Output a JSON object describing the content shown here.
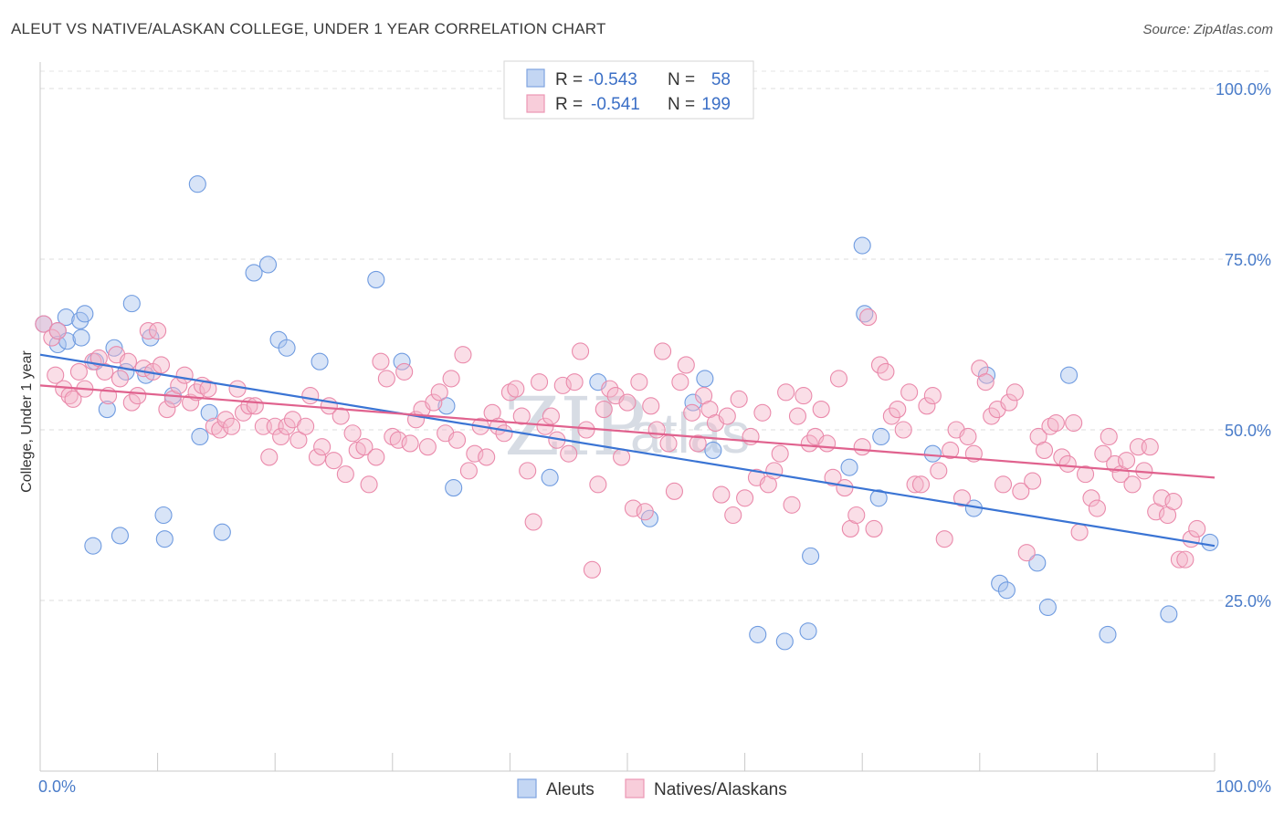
{
  "title": "ALEUT VS NATIVE/ALASKAN COLLEGE, UNDER 1 YEAR CORRELATION CHART",
  "source": "Source: ZipAtlas.com",
  "watermark": {
    "main": "ZIP",
    "sub": "atlas"
  },
  "legend_box": {
    "rows": [
      {
        "r_label": "R =",
        "r_value": "-0.543",
        "n_label": "N =",
        "n_value": "58",
        "color": "#a9c4ee"
      },
      {
        "r_label": "R =",
        "r_value": "-0.541",
        "n_label": "N =",
        "n_value": "199",
        "color": "#f4b6ca"
      }
    ]
  },
  "bottom_legend": [
    {
      "label": "Aleuts",
      "color": "#a9c4ee"
    },
    {
      "label": "Natives/Alaskans",
      "color": "#f4b6ca"
    }
  ],
  "chart_data": {
    "type": "scatter",
    "title": "ALEUT VS NATIVE/ALASKAN COLLEGE, UNDER 1 YEAR CORRELATION CHART",
    "xlabel": "",
    "ylabel": "College, Under 1 year",
    "xlim": [
      0,
      100
    ],
    "ylim": [
      0,
      100
    ],
    "x_tick_labels": [
      "0.0%",
      "100.0%"
    ],
    "y_ticks": [
      25,
      50,
      75,
      100
    ],
    "y_tick_labels": [
      "25.0%",
      "50.0%",
      "75.0%",
      "100.0%"
    ],
    "grid": true,
    "legend_position": "top-center",
    "series": [
      {
        "name": "Aleuts",
        "color": "#a9c4ee",
        "stroke": "#6f9be0",
        "line_color": "#3a74d4",
        "trend": {
          "x": [
            0,
            100
          ],
          "y": [
            61,
            33
          ]
        },
        "points": [
          [
            0.3,
            65.5
          ],
          [
            1.5,
            64.5
          ],
          [
            1.5,
            62.5
          ],
          [
            2.2,
            66.5
          ],
          [
            2.3,
            63
          ],
          [
            3.4,
            66
          ],
          [
            3.5,
            63.5
          ],
          [
            3.8,
            67
          ],
          [
            4.5,
            33
          ],
          [
            4.7,
            60
          ],
          [
            5.7,
            53
          ],
          [
            6.3,
            62
          ],
          [
            6.8,
            34.5
          ],
          [
            7.3,
            58.5
          ],
          [
            7.8,
            68.5
          ],
          [
            9,
            58
          ],
          [
            9.4,
            63.5
          ],
          [
            10.5,
            37.5
          ],
          [
            10.6,
            34
          ],
          [
            11.3,
            55
          ],
          [
            13.4,
            86
          ],
          [
            13.6,
            49
          ],
          [
            14.4,
            52.5
          ],
          [
            15.5,
            35
          ],
          [
            18.2,
            73
          ],
          [
            19.4,
            74.2
          ],
          [
            20.3,
            63.2
          ],
          [
            21,
            62
          ],
          [
            23.8,
            60
          ],
          [
            28.6,
            72
          ],
          [
            30.8,
            60
          ],
          [
            34.6,
            53.5
          ],
          [
            35.2,
            41.5
          ],
          [
            43.4,
            43
          ],
          [
            47.5,
            57
          ],
          [
            51.9,
            37
          ],
          [
            55.6,
            54
          ],
          [
            56.6,
            57.5
          ],
          [
            57.3,
            47
          ],
          [
            61.1,
            20
          ],
          [
            63.4,
            19
          ],
          [
            65.4,
            20.5
          ],
          [
            65.6,
            31.5
          ],
          [
            68.9,
            44.5
          ],
          [
            70,
            77
          ],
          [
            70.2,
            67
          ],
          [
            71.4,
            40
          ],
          [
            71.6,
            49
          ],
          [
            76,
            46.5
          ],
          [
            79.5,
            38.5
          ],
          [
            80.6,
            58
          ],
          [
            81.7,
            27.5
          ],
          [
            82.3,
            26.5
          ],
          [
            84.9,
            30.5
          ],
          [
            85.8,
            24
          ],
          [
            87.6,
            58
          ],
          [
            90.9,
            20
          ],
          [
            96.1,
            23
          ],
          [
            99.6,
            33.5
          ]
        ]
      },
      {
        "name": "Natives/Alaskans",
        "color": "#f4b6ca",
        "stroke": "#ea8aab",
        "line_color": "#e0628e",
        "trend": {
          "x": [
            0,
            100
          ],
          "y": [
            56.5,
            43
          ]
        },
        "points": [
          [
            0.3,
            65.5
          ],
          [
            1,
            63.5
          ],
          [
            1.3,
            58
          ],
          [
            1.5,
            64.5
          ],
          [
            2,
            56
          ],
          [
            2.5,
            55
          ],
          [
            2.8,
            54.5
          ],
          [
            3.3,
            58.5
          ],
          [
            3.8,
            56
          ],
          [
            4.5,
            60
          ],
          [
            5,
            60.5
          ],
          [
            5.5,
            58.5
          ],
          [
            5.8,
            55
          ],
          [
            6.5,
            61
          ],
          [
            6.8,
            57.5
          ],
          [
            7.5,
            60
          ],
          [
            7.8,
            54
          ],
          [
            8.3,
            55
          ],
          [
            8.8,
            59
          ],
          [
            9.2,
            64.5
          ],
          [
            9.6,
            58.5
          ],
          [
            10,
            64.5
          ],
          [
            10.3,
            59.5
          ],
          [
            10.8,
            53
          ],
          [
            11.3,
            54.5
          ],
          [
            11.8,
            56.5
          ],
          [
            12.3,
            58
          ],
          [
            12.8,
            54
          ],
          [
            13.3,
            55.5
          ],
          [
            13.8,
            56.5
          ],
          [
            14.3,
            56
          ],
          [
            14.8,
            50.5
          ],
          [
            15.3,
            50
          ],
          [
            15.8,
            51.5
          ],
          [
            16.3,
            50.5
          ],
          [
            16.8,
            56
          ],
          [
            17.3,
            52.5
          ],
          [
            17.8,
            53.5
          ],
          [
            18.3,
            53.5
          ],
          [
            19,
            50.5
          ],
          [
            19.5,
            46
          ],
          [
            20,
            50.5
          ],
          [
            20.5,
            49
          ],
          [
            21,
            50.5
          ],
          [
            21.5,
            51.5
          ],
          [
            22,
            48.5
          ],
          [
            22.6,
            50.5
          ],
          [
            23,
            55
          ],
          [
            23.6,
            46
          ],
          [
            24,
            47.5
          ],
          [
            24.6,
            53.5
          ],
          [
            25,
            45.5
          ],
          [
            25.6,
            52
          ],
          [
            26,
            43.5
          ],
          [
            26.6,
            49.5
          ],
          [
            27,
            47
          ],
          [
            27.6,
            47.5
          ],
          [
            28,
            42
          ],
          [
            28.6,
            46
          ],
          [
            29,
            60
          ],
          [
            29.5,
            57.5
          ],
          [
            30,
            49
          ],
          [
            30.5,
            48.5
          ],
          [
            31,
            58.5
          ],
          [
            31.5,
            48
          ],
          [
            32,
            51.5
          ],
          [
            32.5,
            53
          ],
          [
            33,
            47.5
          ],
          [
            33.5,
            54
          ],
          [
            34,
            55.5
          ],
          [
            34.5,
            49.5
          ],
          [
            35,
            57.5
          ],
          [
            35.5,
            48.5
          ],
          [
            36,
            61
          ],
          [
            36.5,
            44
          ],
          [
            37,
            46.5
          ],
          [
            37.5,
            50.5
          ],
          [
            38,
            46
          ],
          [
            38.5,
            52.5
          ],
          [
            39,
            50.5
          ],
          [
            39.5,
            49.5
          ],
          [
            40,
            55.5
          ],
          [
            40.5,
            56
          ],
          [
            41,
            52
          ],
          [
            41.5,
            44
          ],
          [
            42,
            36.5
          ],
          [
            42.5,
            57
          ],
          [
            43,
            50.5
          ],
          [
            43.5,
            52
          ],
          [
            44,
            48.5
          ],
          [
            44.5,
            56.5
          ],
          [
            45,
            46.5
          ],
          [
            45.5,
            57
          ],
          [
            46,
            61.5
          ],
          [
            46.5,
            50
          ],
          [
            47,
            29.5
          ],
          [
            47.5,
            42
          ],
          [
            48,
            53
          ],
          [
            48.5,
            56
          ],
          [
            49,
            55
          ],
          [
            49.5,
            46
          ],
          [
            50,
            54
          ],
          [
            50.5,
            38.5
          ],
          [
            51,
            57
          ],
          [
            51.5,
            38
          ],
          [
            52,
            53.5
          ],
          [
            52.5,
            50
          ],
          [
            53,
            61.5
          ],
          [
            53.5,
            48
          ],
          [
            54,
            41
          ],
          [
            54.5,
            57
          ],
          [
            55,
            59.5
          ],
          [
            55.5,
            52.5
          ],
          [
            56,
            48
          ],
          [
            56.5,
            55
          ],
          [
            57,
            53
          ],
          [
            57.5,
            51
          ],
          [
            58,
            40.5
          ],
          [
            58.5,
            52
          ],
          [
            59,
            37.5
          ],
          [
            59.5,
            54.5
          ],
          [
            60,
            40
          ],
          [
            60.5,
            49
          ],
          [
            61,
            43
          ],
          [
            61.5,
            52.5
          ],
          [
            62,
            42
          ],
          [
            62.5,
            44
          ],
          [
            63,
            46.5
          ],
          [
            63.5,
            55.5
          ],
          [
            64,
            39
          ],
          [
            64.5,
            52
          ],
          [
            65,
            55
          ],
          [
            65.5,
            48
          ],
          [
            66,
            49
          ],
          [
            66.5,
            53
          ],
          [
            67,
            48
          ],
          [
            67.5,
            43
          ],
          [
            68,
            57.5
          ],
          [
            68.5,
            41.5
          ],
          [
            69,
            35.5
          ],
          [
            69.5,
            37.5
          ],
          [
            70,
            47.5
          ],
          [
            70.5,
            66.5
          ],
          [
            71,
            35.5
          ],
          [
            71.5,
            59.5
          ],
          [
            72,
            58.5
          ],
          [
            72.5,
            52
          ],
          [
            73,
            53
          ],
          [
            73.5,
            50
          ],
          [
            74,
            55.5
          ],
          [
            74.5,
            42
          ],
          [
            75,
            42
          ],
          [
            75.5,
            53.5
          ],
          [
            76,
            55
          ],
          [
            76.5,
            44
          ],
          [
            77,
            34
          ],
          [
            77.5,
            47
          ],
          [
            78,
            50
          ],
          [
            78.5,
            40
          ],
          [
            79,
            49
          ],
          [
            79.5,
            46.5
          ],
          [
            80,
            59
          ],
          [
            80.5,
            57
          ],
          [
            81,
            52
          ],
          [
            81.5,
            53
          ],
          [
            82,
            42
          ],
          [
            82.5,
            54
          ],
          [
            83,
            55.5
          ],
          [
            83.5,
            41
          ],
          [
            84,
            32
          ],
          [
            84.5,
            42.5
          ],
          [
            85,
            49
          ],
          [
            85.5,
            47
          ],
          [
            86,
            50.5
          ],
          [
            86.5,
            51
          ],
          [
            87,
            46
          ],
          [
            87.5,
            45
          ],
          [
            88,
            51
          ],
          [
            88.5,
            35
          ],
          [
            89,
            43.5
          ],
          [
            89.5,
            40
          ],
          [
            90,
            38.5
          ],
          [
            90.5,
            46.5
          ],
          [
            91,
            49
          ],
          [
            91.5,
            45
          ],
          [
            92,
            43.5
          ],
          [
            92.5,
            45.5
          ],
          [
            93,
            42
          ],
          [
            93.5,
            47.5
          ],
          [
            94,
            44
          ],
          [
            94.5,
            47.5
          ],
          [
            95,
            38
          ],
          [
            95.5,
            40
          ],
          [
            96,
            37.5
          ],
          [
            96.5,
            39.5
          ],
          [
            97,
            31
          ],
          [
            97.5,
            31
          ],
          [
            98,
            34
          ],
          [
            98.5,
            35.5
          ]
        ]
      }
    ]
  }
}
